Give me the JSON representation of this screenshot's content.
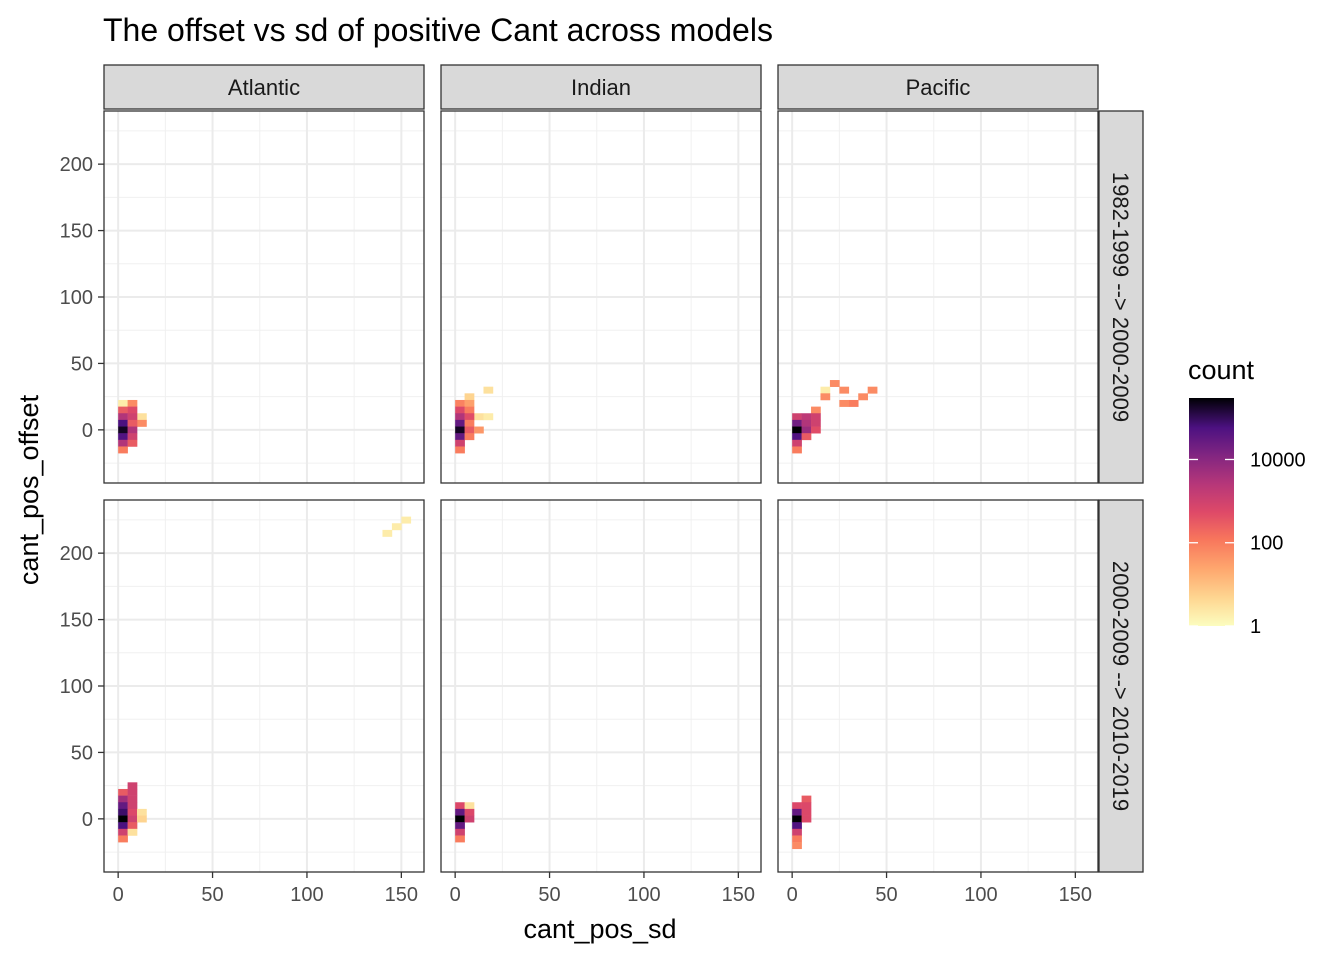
{
  "chart_data": {
    "type": "heatmap",
    "title": "The offset vs sd of positive Cant across models",
    "xlabel": "cant_pos_sd",
    "ylabel": "cant_pos_offset",
    "xlim": [
      -7.5,
      162
    ],
    "ylim": [
      -40,
      240
    ],
    "x_ticks": [
      0,
      50,
      100,
      150
    ],
    "x_tick_labels": [
      "0",
      "50",
      "100",
      "150"
    ],
    "y_ticks": [
      0,
      50,
      100,
      150,
      200
    ],
    "y_tick_labels": [
      "0",
      "50",
      "100",
      "150",
      "200"
    ],
    "bin_width": [
      5,
      5
    ],
    "facet_cols": [
      "Atlantic",
      "Indian",
      "Pacific"
    ],
    "facet_rows": [
      "1982-1999 --> 2000-2009",
      "2000-2009 --> 2010-2019"
    ],
    "legend": {
      "title": "count",
      "scale": "log10",
      "breaks": [
        1,
        100,
        10000
      ],
      "break_labels": [
        "1",
        "100",
        "10000"
      ],
      "range": [
        1,
        300000
      ],
      "palette": "magma (reversed)",
      "position": "right"
    },
    "grid": true,
    "panels": [
      {
        "row": 0,
        "col": 0,
        "bins": [
          [
            2.5,
            20,
            2
          ],
          [
            7.5,
            20,
            60
          ],
          [
            2.5,
            15,
            300
          ],
          [
            7.5,
            15,
            600
          ],
          [
            12.5,
            10,
            3
          ],
          [
            2.5,
            10,
            3000
          ],
          [
            7.5,
            10,
            1000
          ],
          [
            12.5,
            5,
            60
          ],
          [
            2.5,
            5,
            60000
          ],
          [
            7.5,
            5,
            300
          ],
          [
            2.5,
            0,
            200000
          ],
          [
            7.5,
            0,
            3000
          ],
          [
            2.5,
            -5,
            50000
          ],
          [
            7.5,
            -5,
            1000
          ],
          [
            2.5,
            -10,
            3000
          ],
          [
            7.5,
            -10,
            300
          ],
          [
            2.5,
            -15,
            100
          ]
        ]
      },
      {
        "row": 0,
        "col": 1,
        "bins": [
          [
            17.5,
            30,
            3
          ],
          [
            7.5,
            25,
            5
          ],
          [
            2.5,
            20,
            80
          ],
          [
            7.5,
            20,
            30
          ],
          [
            2.5,
            15,
            600
          ],
          [
            7.5,
            15,
            100
          ],
          [
            12.5,
            10,
            3
          ],
          [
            17.5,
            10,
            2
          ],
          [
            2.5,
            10,
            3000
          ],
          [
            7.5,
            10,
            500
          ],
          [
            2.5,
            5,
            30000
          ],
          [
            7.5,
            5,
            100
          ],
          [
            2.5,
            0,
            200000
          ],
          [
            7.5,
            0,
            300
          ],
          [
            12.5,
            0,
            40
          ],
          [
            2.5,
            -5,
            30000
          ],
          [
            7.5,
            -5,
            100
          ],
          [
            2.5,
            -10,
            1000
          ],
          [
            2.5,
            -15,
            100
          ]
        ]
      },
      {
        "row": 0,
        "col": 2,
        "bins": [
          [
            22.5,
            35,
            60
          ],
          [
            17.5,
            30,
            2
          ],
          [
            27.5,
            30,
            60
          ],
          [
            42.5,
            30,
            60
          ],
          [
            17.5,
            25,
            60
          ],
          [
            37.5,
            25,
            60
          ],
          [
            32.5,
            20,
            100
          ],
          [
            12.5,
            15,
            60
          ],
          [
            27.5,
            20,
            60
          ],
          [
            2.5,
            10,
            1000
          ],
          [
            7.5,
            10,
            2000
          ],
          [
            12.5,
            10,
            1000
          ],
          [
            2.5,
            5,
            20000
          ],
          [
            7.5,
            5,
            3000
          ],
          [
            12.5,
            5,
            1000
          ],
          [
            2.5,
            0,
            300000
          ],
          [
            7.5,
            0,
            6000
          ],
          [
            12.5,
            0,
            500
          ],
          [
            2.5,
            -5,
            50000
          ],
          [
            7.5,
            -5,
            300
          ],
          [
            2.5,
            -10,
            1000
          ],
          [
            2.5,
            -15,
            100
          ]
        ]
      },
      {
        "row": 1,
        "col": 0,
        "bins": [
          [
            152.5,
            225,
            2
          ],
          [
            147.5,
            220,
            2
          ],
          [
            142.5,
            215,
            2
          ],
          [
            7.5,
            25,
            1000
          ],
          [
            2.5,
            20,
            300
          ],
          [
            7.5,
            20,
            1000
          ],
          [
            2.5,
            15,
            5000
          ],
          [
            7.5,
            15,
            1000
          ],
          [
            2.5,
            10,
            30000
          ],
          [
            7.5,
            10,
            1000
          ],
          [
            2.5,
            5,
            80000
          ],
          [
            7.5,
            5,
            600
          ],
          [
            12.5,
            5,
            3
          ],
          [
            2.5,
            0,
            300000
          ],
          [
            7.5,
            0,
            1000
          ],
          [
            12.5,
            0,
            5
          ],
          [
            2.5,
            -5,
            60000
          ],
          [
            7.5,
            -5,
            300
          ],
          [
            2.5,
            -10,
            1000
          ],
          [
            7.5,
            -10,
            3
          ],
          [
            2.5,
            -15,
            100
          ]
        ]
      },
      {
        "row": 1,
        "col": 1,
        "bins": [
          [
            2.5,
            10,
            600
          ],
          [
            7.5,
            10,
            3
          ],
          [
            2.5,
            5,
            30000
          ],
          [
            7.5,
            5,
            600
          ],
          [
            2.5,
            0,
            300000
          ],
          [
            7.5,
            0,
            1000
          ],
          [
            2.5,
            -5,
            30000
          ],
          [
            2.5,
            -10,
            1000
          ],
          [
            2.5,
            -15,
            100
          ]
        ]
      },
      {
        "row": 1,
        "col": 2,
        "bins": [
          [
            7.5,
            15,
            300
          ],
          [
            2.5,
            10,
            600
          ],
          [
            7.5,
            10,
            600
          ],
          [
            2.5,
            5,
            30000
          ],
          [
            7.5,
            5,
            600
          ],
          [
            2.5,
            0,
            300000
          ],
          [
            7.5,
            0,
            600
          ],
          [
            2.5,
            -5,
            50000
          ],
          [
            2.5,
            -10,
            1000
          ],
          [
            2.5,
            -15,
            100
          ],
          [
            2.5,
            -20,
            60
          ]
        ]
      }
    ]
  }
}
